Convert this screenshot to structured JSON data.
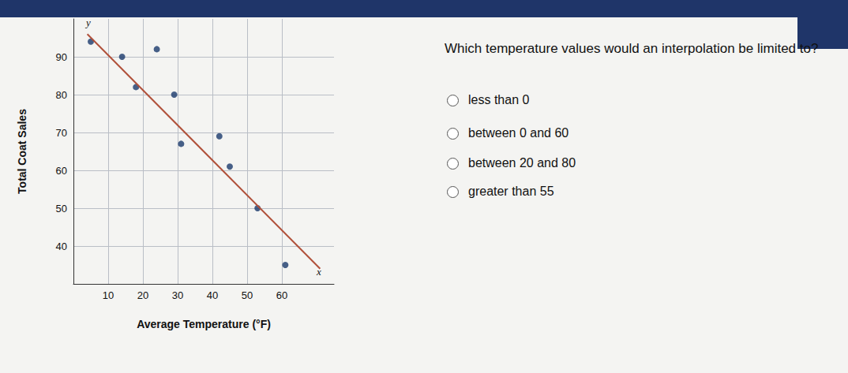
{
  "chart_data": {
    "type": "scatter",
    "x_label": "Average Temperature (°F)",
    "y_label": "Total Coat Sales",
    "x_symbol": "x",
    "y_symbol": "y",
    "series": [
      {
        "type": "scatter",
        "color": "#1a3a6b",
        "marker": "circle",
        "x": [
          5,
          14,
          24,
          18,
          29,
          31,
          42,
          45,
          53,
          61
        ],
        "values": [
          94,
          90,
          92,
          82,
          80,
          67,
          69,
          61,
          50,
          35
        ]
      },
      {
        "type": "line",
        "color": "#b0503a",
        "line_style": "solid",
        "x": [
          4,
          71
        ],
        "values": [
          96,
          34
        ]
      }
    ],
    "xlim": [
      0,
      75
    ],
    "xticks": [
      10,
      20,
      30,
      40,
      50,
      60
    ],
    "ylim": [
      30,
      100
    ],
    "yticks": [
      40,
      50,
      60,
      70,
      80,
      90
    ],
    "grid": true
  },
  "question": "Which temperature values would an interpolation be limited to?",
  "options": [
    "less than 0",
    "between 0 and 60",
    "between 20 and 80",
    "greater than 55"
  ]
}
